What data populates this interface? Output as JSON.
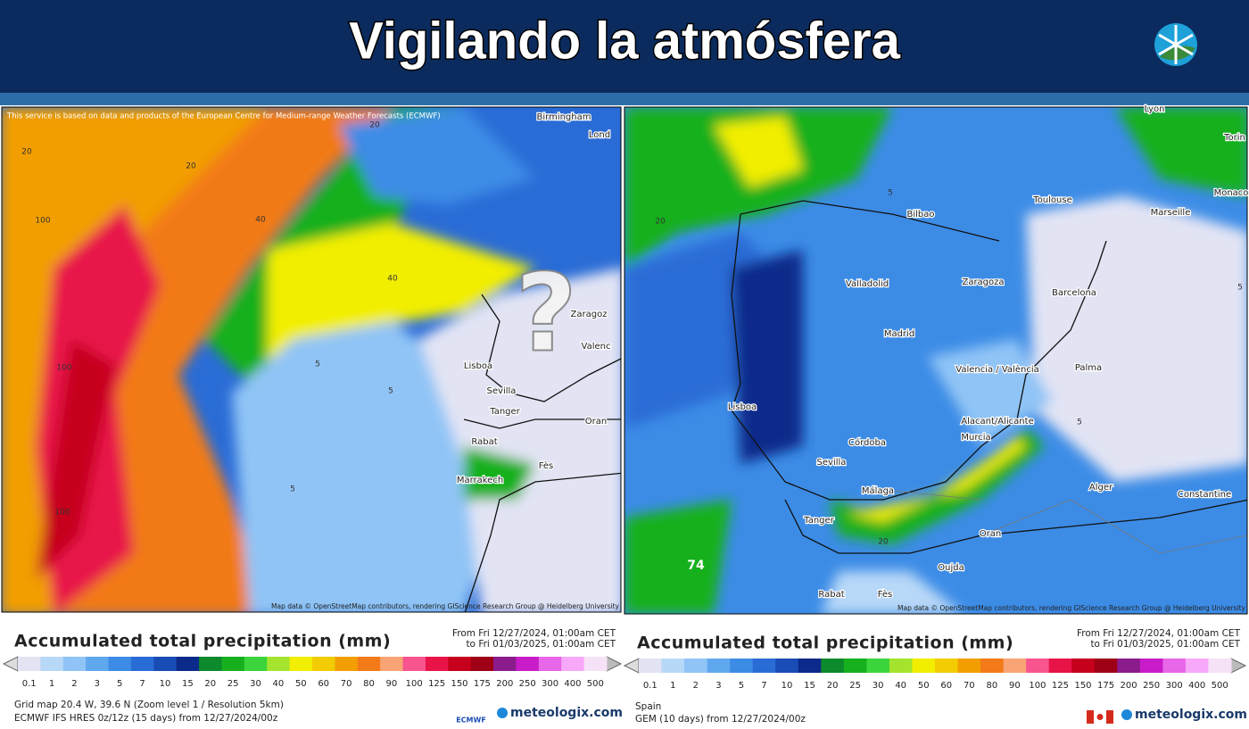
{
  "header": {
    "title": "Vigilando la atmósfera"
  },
  "legend": {
    "labels": [
      "0.1",
      "1",
      "2",
      "3",
      "5",
      "7",
      "10",
      "15",
      "20",
      "25",
      "30",
      "40",
      "50",
      "60",
      "70",
      "80",
      "90",
      "100",
      "125",
      "150",
      "175",
      "200",
      "250",
      "300",
      "400",
      "500"
    ],
    "colors": [
      "#e2e4f4",
      "#b8d8f8",
      "#90c4f6",
      "#60a8ee",
      "#3c8ce6",
      "#2a6cd6",
      "#1a4cb6",
      "#0c2a8a",
      "#0c8a2c",
      "#16b01e",
      "#3cd43c",
      "#a4e42e",
      "#f2ee00",
      "#f2cc00",
      "#f29e00",
      "#f27a18",
      "#f8a474",
      "#f85490",
      "#e81448",
      "#c6001c",
      "#9e0016",
      "#8a1c8c",
      "#c81cc8",
      "#e866e8",
      "#f8a8f8",
      "#f6e2f6"
    ]
  },
  "panels": [
    {
      "notice": "This service is based on data and products of the European Centre for Medium-range Weather Forecasts (ECMWF)",
      "map_labels": [
        "Birmingham",
        "Lond",
        "Zaragoz",
        "Valenc",
        "Lisboa",
        "Sevilla",
        "Tanger",
        "Rabat",
        "Marrakech",
        "Fès",
        "Oran",
        "?",
        "100",
        "100",
        "100",
        "40",
        "40",
        "20",
        "20",
        "20",
        "5",
        "5",
        "5"
      ],
      "attribution": "Map data © OpenStreetMap contributors, rendering GIScience Research Group @ Heidelberg University",
      "legend_title": "Accumulated total precipitation (mm)",
      "date_from": "From Fri 12/27/2024, 01:00am CET",
      "date_to": "to Fri 01/03/2025, 01:00am CET",
      "footer": [
        "Grid map 20.4 W, 39.6 N (Zoom level 1 / Resolution 5km)",
        "ECMWF IFS HRES 0z/12z (15 days) from 12/27/2024/00z"
      ],
      "model_logo": "ECMWF",
      "brand": "meteologix.com"
    },
    {
      "map_labels": [
        "Lyon",
        "Torin",
        "Toulouse",
        "Monaco",
        "Bilbao",
        "Marseille",
        "Valladolid",
        "Zaragoza",
        "Barcelona",
        "Madrid",
        "Palma",
        "Valencia / València",
        "Lisboa",
        "Córdoba",
        "Alacant/Alicante",
        "Murcia",
        "Sevilla",
        "Málaga",
        "Alger",
        "Constantine",
        "Tanger",
        "Oran",
        "Oujda",
        "Rabat",
        "Fès",
        "74",
        "20",
        "20",
        "5",
        "5",
        "5"
      ],
      "attribution": "Map data © OpenStreetMap contributors, rendering GIScience Research Group @ Heidelberg University",
      "legend_title": "Accumulated total precipitation (mm)",
      "date_from": "From Fri 12/27/2024, 01:00am CET",
      "date_to": "to Fri 01/03/2025, 01:00am CET",
      "footer": [
        "Spain",
        "GEM (10 days) from 12/27/2024/00z"
      ],
      "brand": "meteologix.com"
    }
  ]
}
